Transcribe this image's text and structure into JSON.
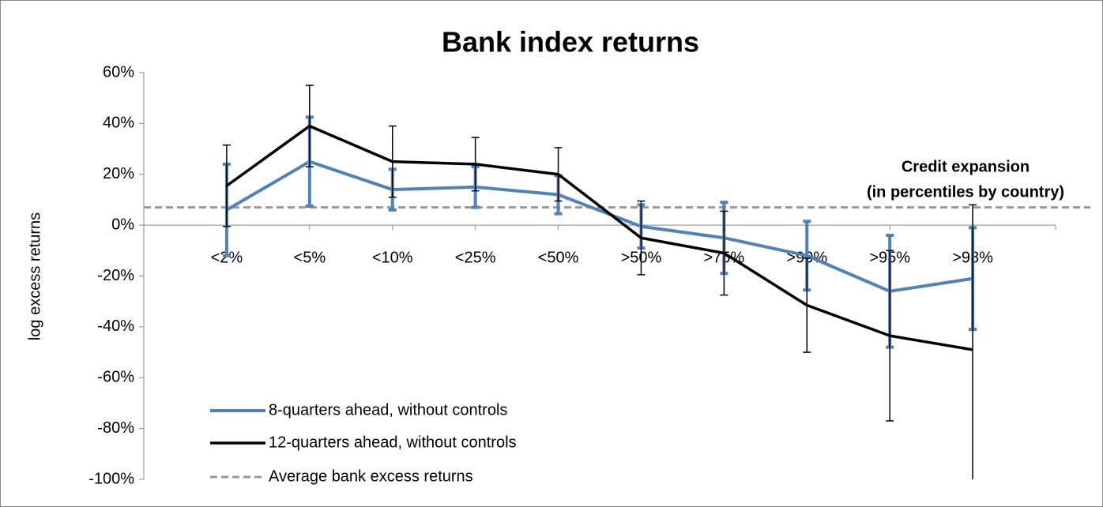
{
  "chart_data": {
    "type": "line",
    "title": "Bank index returns",
    "y_label": "log excess returns",
    "annotation": [
      "Credit expansion",
      "(in percentiles by country)"
    ],
    "categories": [
      "<2%",
      "<5%",
      "<10%",
      "<25%",
      "<50%",
      ">50%",
      ">75%",
      ">90%",
      ">95%",
      ">98%"
    ],
    "series": [
      {
        "name": "8-quarters ahead, without controls",
        "color": "#4f81bd",
        "values": [
          6,
          25,
          14,
          15,
          12,
          -0.5,
          -5,
          -12,
          -26,
          -21
        ],
        "errors": [
          18,
          17.5,
          8,
          8,
          7.5,
          8.5,
          14,
          13.5,
          22,
          20
        ]
      },
      {
        "name": "12-quarters ahead, without controls",
        "color": "#000000",
        "values": [
          15.5,
          39,
          25,
          24,
          20,
          -5,
          -11,
          -31.5,
          -43.5,
          -49
        ],
        "errors": [
          16,
          16,
          14,
          10.5,
          10.5,
          14.5,
          16.5,
          18.5,
          33.5,
          57
        ]
      }
    ],
    "reference_line": {
      "name": "Average bank excess returns",
      "value": 7,
      "color": "#999999"
    },
    "ylim": [
      -100,
      60
    ],
    "yticks": [
      {
        "value": -100,
        "label": "-100%"
      },
      {
        "value": -80,
        "label": "-80%"
      },
      {
        "value": -60,
        "label": "-60%"
      },
      {
        "value": -40,
        "label": "-40%"
      },
      {
        "value": -20,
        "label": "-20%"
      },
      {
        "value": 0,
        "label": "0%"
      },
      {
        "value": 20,
        "label": "20%"
      },
      {
        "value": 40,
        "label": "40%"
      },
      {
        "value": 60,
        "label": "60%"
      }
    ],
    "legend": "lower left"
  }
}
